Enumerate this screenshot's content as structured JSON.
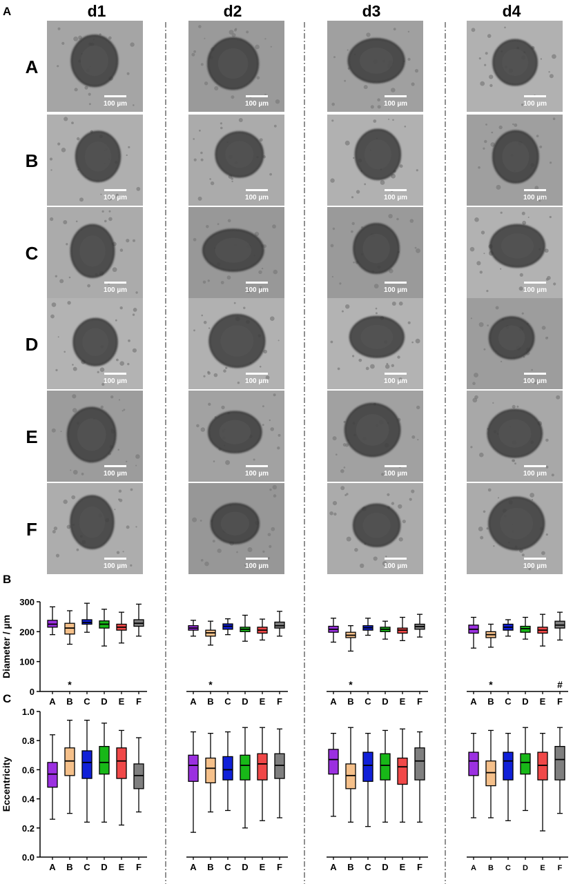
{
  "panel_labels": {
    "a": "A",
    "b": "B",
    "c": "C"
  },
  "columns": [
    "d1",
    "d2",
    "d3",
    "d4"
  ],
  "rows": [
    "A",
    "B",
    "C",
    "D",
    "E",
    "F"
  ],
  "scale_bar_labels": [
    [
      "100 µm",
      "100 µm",
      "100 µm",
      "100 µm"
    ],
    [
      "100 µm",
      "100 µm",
      "100 µm",
      "100 µm"
    ],
    [
      "100 µm",
      "100 µm",
      "100 µm",
      "100 µm"
    ],
    [
      "100 µm",
      "100 µm",
      "100 µm",
      "100 µm"
    ],
    [
      "100 µm",
      "100 µm",
      "100 µm",
      "100 µm"
    ],
    [
      "100 µm",
      "100 µm",
      "100 µm",
      "100 µm"
    ]
  ],
  "colors": {
    "A": "#9B30E0",
    "B": "#F5C08A",
    "C": "#1020D8",
    "D": "#18B818",
    "E": "#F04848",
    "F": "#7F7F7F",
    "micrograph_bg": "#a4a4a4",
    "spheroid": "#3c3c3c"
  },
  "chart_data": [
    {
      "type": "box",
      "panel": "B",
      "ylabel": "Diameter / µm",
      "ylim": [
        0,
        300
      ],
      "yticks": [
        0,
        100,
        200,
        300
      ],
      "categories": [
        "A",
        "B",
        "C",
        "D",
        "E",
        "F"
      ],
      "days": [
        {
          "day": "d1",
          "boxes": [
            [
              190,
              215,
              225,
              238,
              283
            ],
            [
              158,
              192,
              212,
              228,
              270
            ],
            [
              198,
              225,
              231,
              240,
              295
            ],
            [
              152,
              212,
              225,
              236,
              275
            ],
            [
              162,
              205,
              215,
              225,
              265
            ],
            [
              185,
              218,
              228,
              240,
              292
            ]
          ],
          "annotations": [
            {
              "category": "B",
              "text": "*"
            }
          ]
        },
        {
          "day": "d2",
          "boxes": [
            [
              185,
              205,
              212,
              220,
              238
            ],
            [
              155,
              185,
              196,
              205,
              235
            ],
            [
              190,
              208,
              218,
              226,
              243
            ],
            [
              168,
              200,
              208,
              215,
              255
            ],
            [
              172,
              195,
              205,
              215,
              242
            ],
            [
              185,
              212,
              220,
              232,
              268
            ]
          ],
          "annotations": [
            {
              "category": "B",
              "text": "*"
            }
          ]
        },
        {
          "day": "d3",
          "boxes": [
            [
              165,
              198,
              208,
              218,
              245
            ],
            [
              135,
              180,
              188,
              198,
              220
            ],
            [
              188,
              205,
              213,
              220,
              245
            ],
            [
              175,
              200,
              208,
              215,
              235
            ],
            [
              170,
              195,
              205,
              212,
              248
            ],
            [
              182,
              208,
              217,
              225,
              258
            ]
          ],
          "annotations": [
            {
              "category": "B",
              "text": "*"
            }
          ]
        },
        {
          "day": "d4",
          "boxes": [
            [
              145,
              195,
              208,
              222,
              248
            ],
            [
              148,
              180,
              190,
              200,
              225
            ],
            [
              185,
              205,
              215,
              225,
              240
            ],
            [
              175,
              198,
              210,
              218,
              248
            ],
            [
              152,
              195,
              205,
              215,
              258
            ],
            [
              172,
              212,
              222,
              235,
              265
            ]
          ],
          "annotations": [
            {
              "category": "B",
              "text": "*"
            },
            {
              "category": "F",
              "text": "#"
            }
          ]
        }
      ]
    },
    {
      "type": "box",
      "panel": "C",
      "ylabel": "Eccentricity",
      "ylim": [
        0,
        1.0
      ],
      "yticks": [
        0.0,
        0.2,
        0.4,
        0.6,
        0.8,
        1.0
      ],
      "categories": [
        "A",
        "B",
        "C",
        "D",
        "E",
        "F"
      ],
      "days": [
        {
          "day": "d1",
          "boxes": [
            [
              0.26,
              0.48,
              0.57,
              0.65,
              0.84
            ],
            [
              0.3,
              0.56,
              0.66,
              0.75,
              0.94
            ],
            [
              0.24,
              0.54,
              0.65,
              0.73,
              0.94
            ],
            [
              0.24,
              0.57,
              0.65,
              0.76,
              0.92
            ],
            [
              0.22,
              0.54,
              0.66,
              0.75,
              0.87
            ],
            [
              0.31,
              0.47,
              0.56,
              0.64,
              0.82
            ]
          ]
        },
        {
          "day": "d2",
          "boxes": [
            [
              0.17,
              0.52,
              0.63,
              0.7,
              0.86
            ],
            [
              0.31,
              0.51,
              0.61,
              0.68,
              0.85
            ],
            [
              0.32,
              0.53,
              0.6,
              0.69,
              0.86
            ],
            [
              0.2,
              0.53,
              0.63,
              0.7,
              0.89
            ],
            [
              0.25,
              0.53,
              0.64,
              0.71,
              0.89
            ],
            [
              0.27,
              0.54,
              0.63,
              0.71,
              0.88
            ]
          ]
        },
        {
          "day": "d3",
          "boxes": [
            [
              0.28,
              0.57,
              0.67,
              0.74,
              0.85
            ],
            [
              0.24,
              0.47,
              0.56,
              0.64,
              0.89
            ],
            [
              0.21,
              0.52,
              0.63,
              0.72,
              0.85
            ],
            [
              0.24,
              0.53,
              0.63,
              0.71,
              0.87
            ],
            [
              0.24,
              0.5,
              0.62,
              0.68,
              0.88
            ],
            [
              0.24,
              0.53,
              0.66,
              0.75,
              0.86
            ]
          ]
        },
        {
          "day": "d4",
          "boxes": [
            [
              0.27,
              0.56,
              0.66,
              0.72,
              0.85
            ],
            [
              0.27,
              0.49,
              0.58,
              0.66,
              0.87
            ],
            [
              0.25,
              0.53,
              0.66,
              0.72,
              0.85
            ],
            [
              0.32,
              0.57,
              0.65,
              0.71,
              0.89
            ],
            [
              0.18,
              0.53,
              0.63,
              0.72,
              0.85
            ],
            [
              0.3,
              0.53,
              0.67,
              0.76,
              0.89
            ]
          ]
        }
      ]
    }
  ]
}
